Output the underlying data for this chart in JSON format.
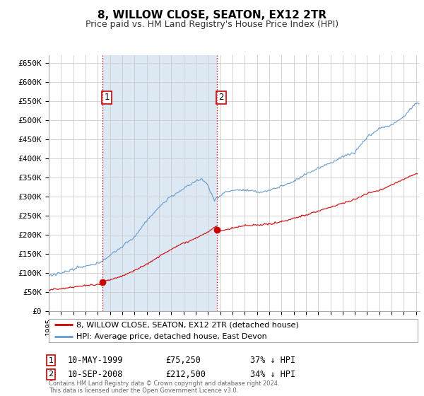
{
  "title": "8, WILLOW CLOSE, SEATON, EX12 2TR",
  "subtitle": "Price paid vs. HM Land Registry's House Price Index (HPI)",
  "footer": "Contains HM Land Registry data © Crown copyright and database right 2024.\nThis data is licensed under the Open Government Licence v3.0.",
  "legend_entries": [
    "8, WILLOW CLOSE, SEATON, EX12 2TR (detached house)",
    "HPI: Average price, detached house, East Devon"
  ],
  "legend_colors": [
    "#cc0000",
    "#6699cc"
  ],
  "hpi_color": "#6699cc",
  "hpi_fill_color": "#dce9f5",
  "price_color": "#cc0000",
  "vline_color": "#cc0000",
  "grid_color": "#cccccc",
  "background_color": "#ffffff",
  "plot_bg_color": "#ffffff",
  "ylim": [
    0,
    670000
  ],
  "yticks": [
    0,
    50000,
    100000,
    150000,
    200000,
    250000,
    300000,
    350000,
    400000,
    450000,
    500000,
    550000,
    600000,
    650000
  ],
  "ytick_labels": [
    "£0",
    "£50K",
    "£100K",
    "£150K",
    "£200K",
    "£250K",
    "£300K",
    "£350K",
    "£400K",
    "£450K",
    "£500K",
    "£550K",
    "£600K",
    "£650K"
  ],
  "p1_x": 1999.37,
  "p1_y": 75250,
  "p2_x": 2008.71,
  "p2_y": 212500,
  "xmin": 1995.0,
  "xmax": 2025.3,
  "hpi_keypoints_x": [
    1995.0,
    1996.0,
    1997.0,
    1998.0,
    1999.0,
    2000.0,
    2001.0,
    2002.0,
    2003.0,
    2004.0,
    2005.0,
    2006.0,
    2007.0,
    2007.5,
    2008.0,
    2008.5,
    2009.0,
    2009.5,
    2010.0,
    2011.0,
    2012.0,
    2013.0,
    2014.0,
    2015.0,
    2016.0,
    2017.0,
    2018.0,
    2019.0,
    2020.0,
    2021.0,
    2022.0,
    2023.0,
    2024.0,
    2024.5,
    2025.0
  ],
  "hpi_keypoints_y": [
    93000,
    97000,
    105000,
    115000,
    125000,
    145000,
    170000,
    195000,
    235000,
    270000,
    300000,
    320000,
    340000,
    345000,
    330000,
    290000,
    300000,
    310000,
    315000,
    315000,
    310000,
    315000,
    325000,
    340000,
    360000,
    375000,
    390000,
    410000,
    420000,
    460000,
    480000,
    490000,
    510000,
    530000,
    545000
  ],
  "price_keypoints_x": [
    1995.0,
    1996.0,
    1997.0,
    1998.0,
    1999.0,
    1999.37,
    1999.38,
    2000.0,
    2001.0,
    2002.0,
    2003.0,
    2004.0,
    2005.0,
    2006.0,
    2007.0,
    2008.0,
    2008.5,
    2008.71,
    2008.72,
    2009.0,
    2010.0,
    2011.0,
    2012.0,
    2013.0,
    2014.0,
    2015.0,
    2016.0,
    2017.0,
    2018.0,
    2019.0,
    2020.0,
    2021.0,
    2022.0,
    2023.0,
    2024.0,
    2025.0
  ],
  "price_keypoints_y": [
    55000,
    58000,
    62000,
    66000,
    68000,
    70000,
    75250,
    80000,
    90000,
    105000,
    120000,
    140000,
    158000,
    175000,
    188000,
    205000,
    215000,
    220000,
    212500,
    205000,
    215000,
    220000,
    220000,
    225000,
    230000,
    240000,
    250000,
    260000,
    270000,
    280000,
    290000,
    305000,
    315000,
    330000,
    345000,
    360000
  ]
}
